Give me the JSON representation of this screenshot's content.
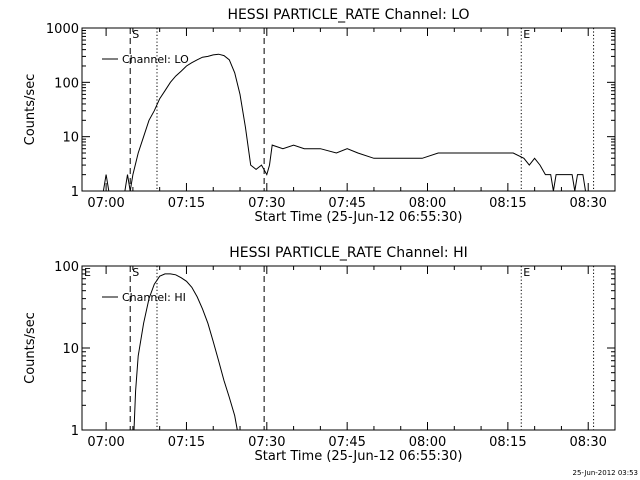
{
  "chart_data": [
    {
      "type": "line",
      "title": "HESSI PARTICLE_RATE Channel: LO",
      "xlabel": "Start Time (25-Jun-12 06:55:30)",
      "ylabel": "Counts/sec",
      "y_scale": "log",
      "ylim": [
        1,
        1000
      ],
      "y_ticks": [
        1,
        10,
        100,
        1000
      ],
      "y_tick_labels": [
        "1",
        "10",
        "100",
        "1000"
      ],
      "x_ticks": [
        "07:00",
        "07:15",
        "07:30",
        "07:45",
        "08:00",
        "08:15",
        "08:30"
      ],
      "legend": "Channel: LO",
      "legend_position": "top-left",
      "markers": [
        {
          "label": "S",
          "time": "07:04.5",
          "style": "dashed"
        },
        {
          "label": "",
          "time": "07:29.5",
          "style": "dashed"
        },
        {
          "label": "",
          "time": "07:09.5",
          "style": "dotted"
        },
        {
          "label": "E",
          "time": "08:17.5",
          "style": "dotted"
        },
        {
          "label": "",
          "time": "08:31",
          "style": "dotted"
        }
      ],
      "series": [
        {
          "name": "Channel: LO",
          "points": [
            [
              "06:59.5",
              1
            ],
            [
              "07:00",
              2
            ],
            [
              "07:00.5",
              1
            ],
            [
              "07:03.5",
              1
            ],
            [
              "07:04",
              2
            ],
            [
              "07:04.5",
              1
            ],
            [
              "07:05",
              2
            ],
            [
              "07:06",
              5
            ],
            [
              "07:07",
              10
            ],
            [
              "07:08",
              20
            ],
            [
              "07:09",
              30
            ],
            [
              "07:10",
              50
            ],
            [
              "07:11",
              70
            ],
            [
              "07:12",
              100
            ],
            [
              "07:13",
              130
            ],
            [
              "07:14",
              160
            ],
            [
              "07:15",
              200
            ],
            [
              "07:16",
              230
            ],
            [
              "07:17",
              260
            ],
            [
              "07:18",
              290
            ],
            [
              "07:19",
              300
            ],
            [
              "07:20",
              320
            ],
            [
              "07:21",
              330
            ],
            [
              "07:22",
              310
            ],
            [
              "07:23",
              260
            ],
            [
              "07:24",
              150
            ],
            [
              "07:25",
              60
            ],
            [
              "07:26",
              15
            ],
            [
              "07:27",
              3
            ],
            [
              "07:28",
              2.5
            ],
            [
              "07:29",
              3
            ],
            [
              "07:30",
              2
            ],
            [
              "07:30.5",
              3
            ],
            [
              "07:31",
              7
            ],
            [
              "07:33",
              6
            ],
            [
              "07:35",
              7
            ],
            [
              "07:37",
              6
            ],
            [
              "07:40",
              6
            ],
            [
              "07:43",
              5
            ],
            [
              "07:45",
              6
            ],
            [
              "07:47",
              5
            ],
            [
              "07:50",
              4
            ],
            [
              "07:53",
              4
            ],
            [
              "07:56",
              4
            ],
            [
              "07:59",
              4
            ],
            [
              "08:02",
              5
            ],
            [
              "08:05",
              5
            ],
            [
              "08:08",
              5
            ],
            [
              "08:11",
              5
            ],
            [
              "08:14",
              5
            ],
            [
              "08:16",
              5
            ],
            [
              "08:18",
              4
            ],
            [
              "08:19",
              3
            ],
            [
              "08:20",
              4
            ],
            [
              "08:21",
              3
            ],
            [
              "08:22",
              2
            ],
            [
              "08:23",
              2
            ],
            [
              "08:23.5",
              1
            ],
            [
              "08:24",
              2
            ],
            [
              "08:27",
              2
            ],
            [
              "08:27.5",
              1
            ],
            [
              "08:28",
              2
            ],
            [
              "08:29",
              2
            ],
            [
              "08:29.5",
              1
            ]
          ]
        }
      ]
    },
    {
      "type": "line",
      "title": "HESSI PARTICLE_RATE Channel: HI",
      "xlabel": "Start Time (25-Jun-12 06:55:30)",
      "ylabel": "Counts/sec",
      "y_scale": "log",
      "ylim": [
        1,
        100
      ],
      "y_ticks": [
        1,
        10,
        100
      ],
      "y_tick_labels": [
        "1",
        "10",
        "100"
      ],
      "x_ticks": [
        "07:00",
        "07:15",
        "07:30",
        "07:45",
        "08:00",
        "08:15",
        "08:30"
      ],
      "legend": "Channel: HI",
      "legend_position": "top-left",
      "corner_label": "E",
      "markers": [
        {
          "label": "S",
          "time": "07:04.5",
          "style": "dashed"
        },
        {
          "label": "",
          "time": "07:29.5",
          "style": "dashed"
        },
        {
          "label": "",
          "time": "07:09.5",
          "style": "dotted"
        },
        {
          "label": "E",
          "time": "08:17.5",
          "style": "dotted"
        },
        {
          "label": "",
          "time": "08:31",
          "style": "dotted"
        }
      ],
      "series": [
        {
          "name": "Channel: HI",
          "points": [
            [
              "07:05.2",
              1
            ],
            [
              "07:05.5",
              3
            ],
            [
              "07:06",
              8
            ],
            [
              "07:07",
              20
            ],
            [
              "07:08",
              40
            ],
            [
              "07:09",
              60
            ],
            [
              "07:10",
              75
            ],
            [
              "07:11",
              80
            ],
            [
              "07:12",
              80
            ],
            [
              "07:13",
              78
            ],
            [
              "07:14",
              72
            ],
            [
              "07:15",
              65
            ],
            [
              "07:16",
              55
            ],
            [
              "07:17",
              42
            ],
            [
              "07:18",
              30
            ],
            [
              "07:19",
              20
            ],
            [
              "07:20",
              12
            ],
            [
              "07:21",
              7
            ],
            [
              "07:22",
              4
            ],
            [
              "07:23",
              2.5
            ],
            [
              "07:24",
              1.5
            ],
            [
              "07:24.5",
              1
            ]
          ]
        }
      ]
    }
  ],
  "footer": {
    "timestamp": "25-Jun-2012 03:53"
  }
}
